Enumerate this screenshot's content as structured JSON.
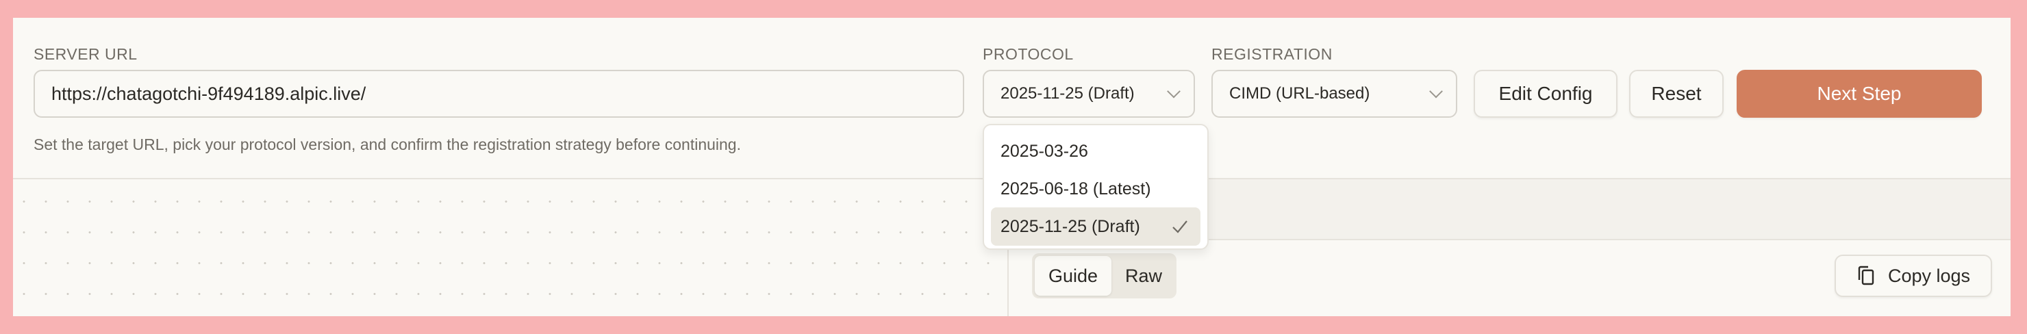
{
  "config": {
    "server_url_label": "SERVER URL",
    "server_url_value": "https://chatagotchi-9f494189.alpic.live/",
    "protocol_label": "PROTOCOL",
    "protocol_value": "2025-11-25 (Draft)",
    "registration_label": "REGISTRATION",
    "registration_value": "CIMD (URL-based)",
    "edit_config_label": "Edit Config",
    "reset_label": "Reset",
    "next_step_label": "Next Step",
    "helper_text": "Set the target URL, pick your protocol version, and confirm the registration strategy before continuing."
  },
  "protocol_dropdown": {
    "options": [
      {
        "label": "2025-03-26",
        "selected": false
      },
      {
        "label": "2025-06-18 (Latest)",
        "selected": false
      },
      {
        "label": "2025-11-25 (Draft)",
        "selected": true
      }
    ]
  },
  "logs_panel": {
    "tabs": [
      {
        "label": "Guide",
        "active": true
      },
      {
        "label": "Raw",
        "active": false
      }
    ],
    "copy_logs_label": "Copy logs",
    "copy_icon": "copy-icon"
  },
  "colors": {
    "accent": "#d27f5e",
    "frame": "#f8b3b4",
    "background": "#faf9f5"
  }
}
